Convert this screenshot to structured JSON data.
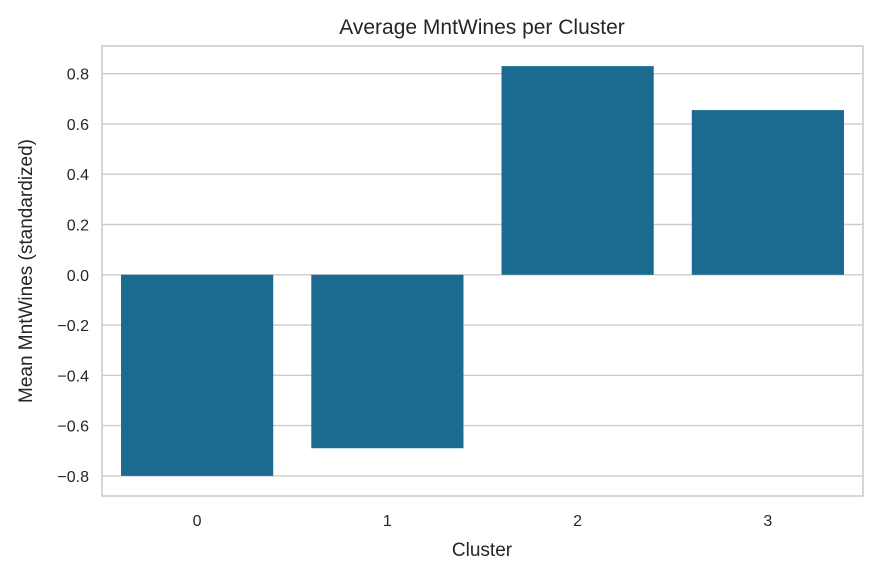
{
  "chart_data": {
    "type": "bar",
    "title": "Average MntWines per Cluster",
    "xlabel": "Cluster",
    "ylabel": "Mean MntWines (standardized)",
    "categories": [
      "0",
      "1",
      "2",
      "3"
    ],
    "values": [
      -0.8,
      -0.69,
      0.83,
      0.655
    ],
    "ylim": [
      -0.88,
      0.91
    ],
    "yticks": [
      0.8,
      0.6,
      0.4,
      0.2,
      0.0,
      -0.2,
      -0.4,
      -0.6,
      -0.8
    ],
    "ytick_labels": [
      "0.8",
      "0.6",
      "0.4",
      "0.2",
      "0.0",
      "−0.2",
      "−0.4",
      "−0.6",
      "−0.8"
    ],
    "grid": true,
    "legend": "none",
    "colors": {
      "bar": "#1a6b8f",
      "grid": "#cccccc",
      "frame": "#cccccc",
      "text": "#262626"
    }
  }
}
